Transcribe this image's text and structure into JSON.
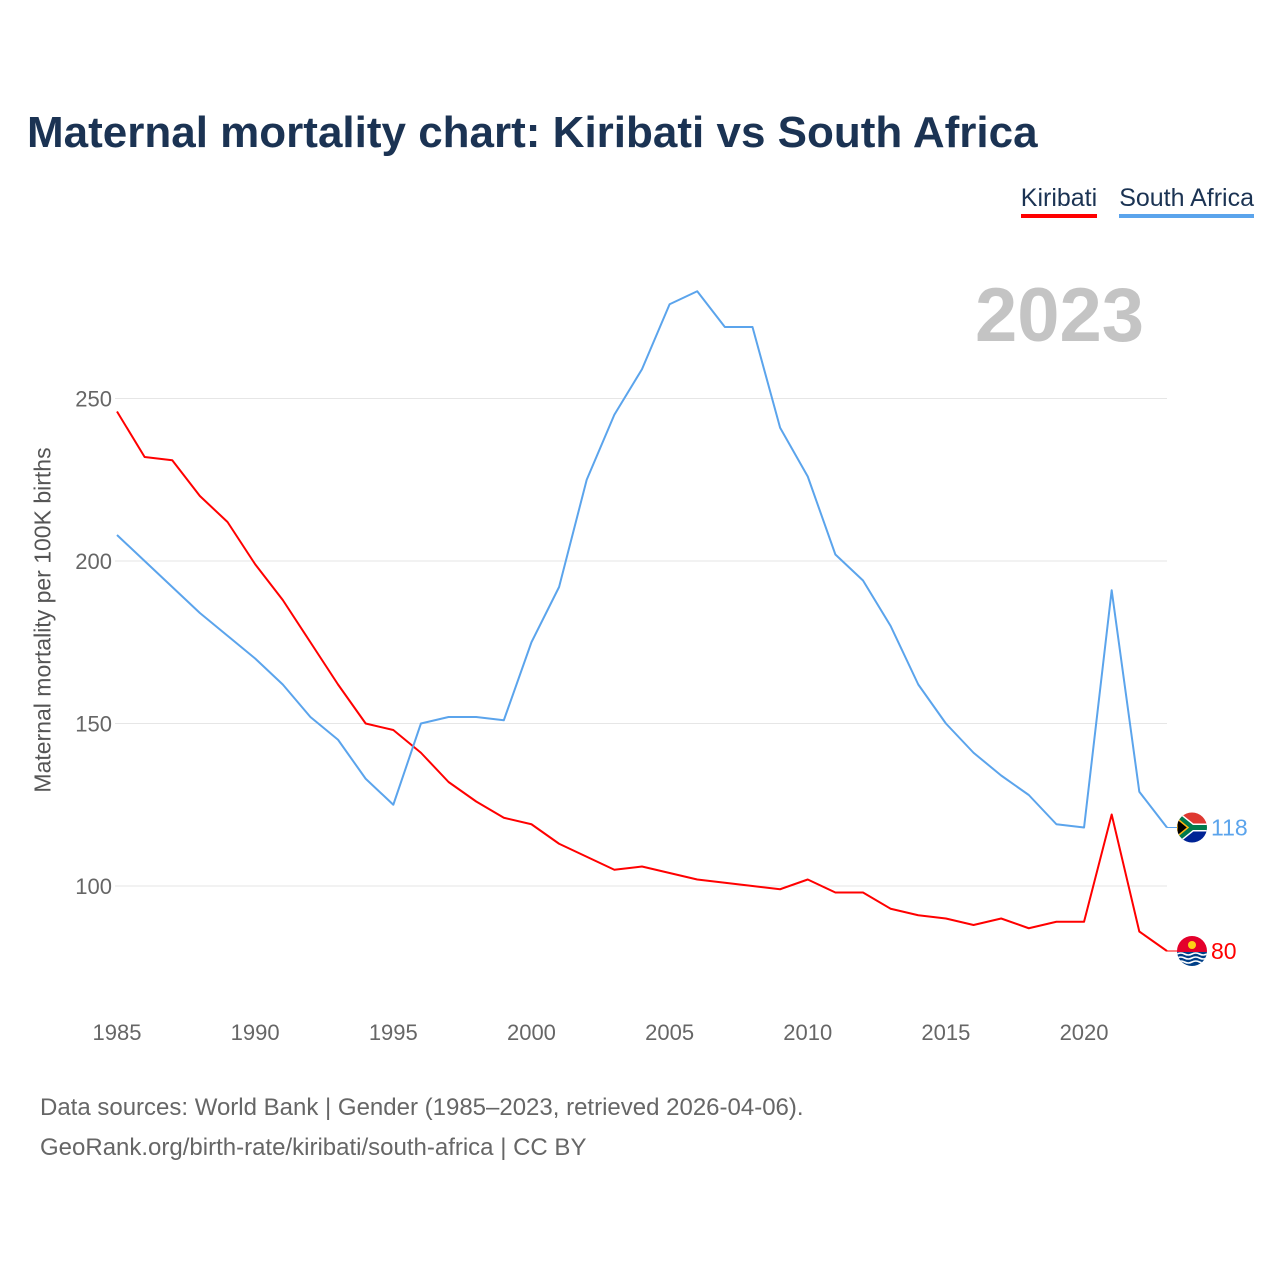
{
  "title": "Maternal mortality chart: Kiribati vs South Africa",
  "year_label": "2023",
  "footer": {
    "line1": "Data sources: World Bank | Gender (1985–2023, retrieved 2026-04-06).",
    "line2": "GeoRank.org/birth-rate/kiribati/south-africa | CC BY"
  },
  "chart_data": {
    "type": "line",
    "title": "Maternal mortality chart: Kiribati vs South Africa",
    "xlabel": "",
    "ylabel": "Maternal mortality per 100K births",
    "xlim": [
      1985,
      2023
    ],
    "ylim": [
      70,
      290
    ],
    "xticks": [
      "1985",
      "1990",
      "1995",
      "2000",
      "2005",
      "2010",
      "2015",
      "2020"
    ],
    "yticks": [
      "100",
      "150",
      "200",
      "250"
    ],
    "grid": true,
    "legend_position": "top-right",
    "x": [
      1985,
      1986,
      1987,
      1988,
      1989,
      1990,
      1991,
      1992,
      1993,
      1994,
      1995,
      1996,
      1997,
      1998,
      1999,
      2000,
      2001,
      2002,
      2003,
      2004,
      2005,
      2006,
      2007,
      2008,
      2009,
      2010,
      2011,
      2012,
      2013,
      2014,
      2015,
      2016,
      2017,
      2018,
      2019,
      2020,
      2021,
      2022,
      2023
    ],
    "series": [
      {
        "name": "Kiribati",
        "color": "#ff0000",
        "end_label": "80",
        "flag": "kiribati-flag",
        "values": [
          246,
          232,
          231,
          220,
          212,
          199,
          188,
          175,
          162,
          150,
          148,
          141,
          132,
          126,
          121,
          119,
          113,
          109,
          105,
          106,
          104,
          102,
          101,
          100,
          99,
          102,
          98,
          98,
          93,
          91,
          90,
          88,
          90,
          87,
          89,
          89,
          122,
          86,
          80
        ]
      },
      {
        "name": "South Africa",
        "color": "#5ba4ec",
        "end_label": "118",
        "flag": "south-africa-flag",
        "values": [
          208,
          200,
          192,
          184,
          177,
          170,
          162,
          152,
          145,
          133,
          125,
          150,
          152,
          152,
          151,
          175,
          192,
          225,
          245,
          259,
          279,
          283,
          272,
          272,
          241,
          226,
          202,
          194,
          180,
          162,
          150,
          141,
          134,
          128,
          119,
          118,
          191,
          129,
          118
        ]
      }
    ]
  }
}
